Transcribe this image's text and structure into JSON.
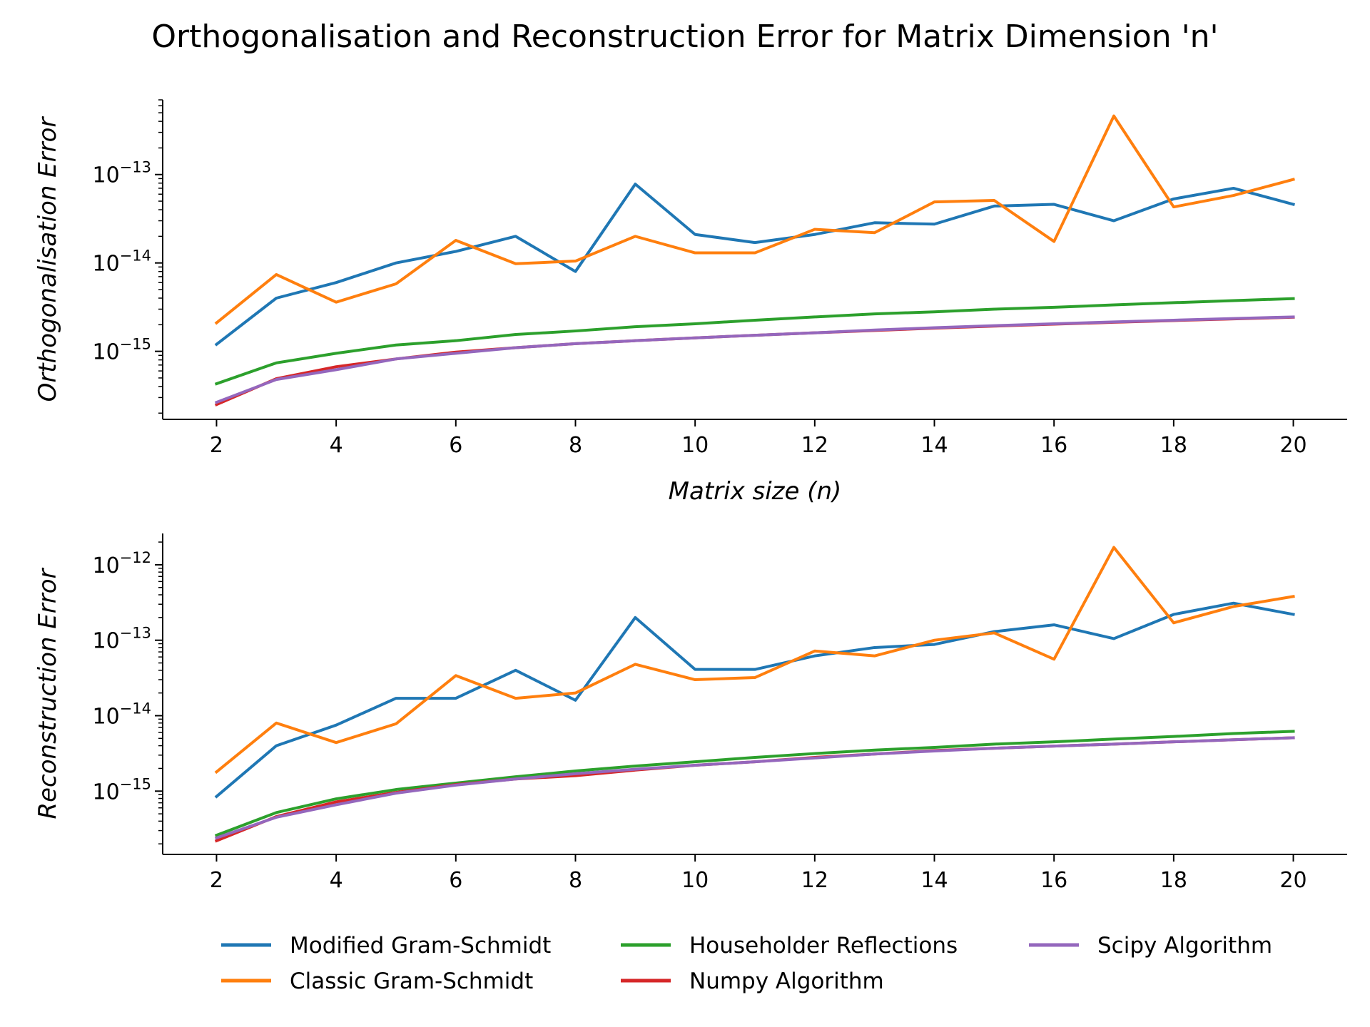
{
  "title": "Orthogonalisation and Reconstruction Error for Matrix Dimension 'n'",
  "chart_data": [
    {
      "type": "line",
      "ylabel": "Orthogonalisation Error",
      "xlabel": "Matrix size (n)",
      "yscale": "log",
      "x": [
        2,
        3,
        4,
        5,
        6,
        7,
        8,
        9,
        10,
        11,
        12,
        13,
        14,
        15,
        16,
        17,
        18,
        19,
        20
      ],
      "xticks": [
        2,
        4,
        6,
        8,
        10,
        12,
        14,
        16,
        18,
        20
      ],
      "xtick_labels": [
        "2",
        "4",
        "6",
        "8",
        "10",
        "12",
        "14",
        "16",
        "18",
        "20"
      ],
      "yticks": [
        {
          "value": 1e-15,
          "base": "10",
          "exp": "−15"
        },
        {
          "value": 1e-14,
          "base": "10",
          "exp": "−14"
        },
        {
          "value": 1e-13,
          "base": "10",
          "exp": "−13"
        }
      ],
      "ylim": [
        1.7e-16,
        7e-13
      ],
      "xlim": [
        1.1,
        20.9
      ],
      "series": [
        {
          "name": "Modified Gram-Schmidt",
          "color": "#1f77b4",
          "values": [
            1.2e-15,
            4e-15,
            6e-15,
            1e-14,
            1.35e-14,
            2e-14,
            8e-15,
            7.8e-14,
            2.1e-14,
            1.7e-14,
            2.1e-14,
            2.85e-14,
            2.75e-14,
            4.4e-14,
            4.6e-14,
            3e-14,
            5.3e-14,
            7e-14,
            4.6e-14
          ]
        },
        {
          "name": "Classic Gram-Schmidt",
          "color": "#ff7f0e",
          "values": [
            2.1e-15,
            7.4e-15,
            3.6e-15,
            5.8e-15,
            1.8e-14,
            9.8e-15,
            1.05e-14,
            2e-14,
            1.3e-14,
            1.3e-14,
            2.4e-14,
            2.2e-14,
            4.9e-14,
            5.1e-14,
            1.75e-14,
            4.6e-13,
            4.3e-14,
            5.8e-14,
            8.8e-14
          ]
        },
        {
          "name": "Householder Reflections",
          "color": "#2ca02c",
          "values": [
            4.3e-16,
            7.4e-16,
            9.5e-16,
            1.18e-15,
            1.32e-15,
            1.55e-15,
            1.7e-15,
            1.9e-15,
            2.05e-15,
            2.25e-15,
            2.45e-15,
            2.65e-15,
            2.8e-15,
            3e-15,
            3.15e-15,
            3.35e-15,
            3.55e-15,
            3.75e-15,
            3.95e-15
          ]
        },
        {
          "name": "Numpy Algorithm",
          "color": "#d62728",
          "values": [
            2.5e-16,
            4.9e-16,
            6.7e-16,
            8.2e-16,
            9.8e-16,
            1.1e-15,
            1.22e-15,
            1.32e-15,
            1.42e-15,
            1.52e-15,
            1.62e-15,
            1.72e-15,
            1.83e-15,
            1.93e-15,
            2.03e-15,
            2.13e-15,
            2.23e-15,
            2.33e-15,
            2.43e-15
          ]
        },
        {
          "name": "Scipy Algorithm",
          "color": "#9467bd",
          "values": [
            2.65e-16,
            4.8e-16,
            6.2e-16,
            8.2e-16,
            9.5e-16,
            1.1e-15,
            1.22e-15,
            1.32e-15,
            1.42e-15,
            1.52e-15,
            1.62e-15,
            1.74e-15,
            1.85e-15,
            1.95e-15,
            2.05e-15,
            2.15e-15,
            2.25e-15,
            2.35e-15,
            2.45e-15
          ]
        }
      ]
    },
    {
      "type": "line",
      "ylabel": "Reconstruction Error",
      "xlabel": "",
      "yscale": "log",
      "x": [
        2,
        3,
        4,
        5,
        6,
        7,
        8,
        9,
        10,
        11,
        12,
        13,
        14,
        15,
        16,
        17,
        18,
        19,
        20
      ],
      "xticks": [
        2,
        4,
        6,
        8,
        10,
        12,
        14,
        16,
        18,
        20
      ],
      "xtick_labels": [
        "2",
        "4",
        "6",
        "8",
        "10",
        "12",
        "14",
        "16",
        "18",
        "20"
      ],
      "yticks": [
        {
          "value": 1e-15,
          "base": "10",
          "exp": "−15"
        },
        {
          "value": 1e-14,
          "base": "10",
          "exp": "−14"
        },
        {
          "value": 1e-13,
          "base": "10",
          "exp": "−13"
        },
        {
          "value": 1e-12,
          "base": "10",
          "exp": "−12"
        }
      ],
      "ylim": [
        1.45e-16,
        2.6e-12
      ],
      "xlim": [
        1.1,
        20.9
      ],
      "series": [
        {
          "name": "Modified Gram-Schmidt",
          "color": "#1f77b4",
          "values": [
            8.5e-16,
            4e-15,
            7.5e-15,
            1.7e-14,
            1.7e-14,
            4e-14,
            1.6e-14,
            2e-13,
            4.1e-14,
            4.1e-14,
            6.2e-14,
            8e-14,
            8.8e-14,
            1.3e-13,
            1.6e-13,
            1.05e-13,
            2.2e-13,
            3.1e-13,
            2.2e-13
          ]
        },
        {
          "name": "Classic Gram-Schmidt",
          "color": "#ff7f0e",
          "values": [
            1.8e-15,
            8e-15,
            4.4e-15,
            7.8e-15,
            3.4e-14,
            1.7e-14,
            2e-14,
            4.8e-14,
            3e-14,
            3.2e-14,
            7.2e-14,
            6.2e-14,
            1e-13,
            1.25e-13,
            5.6e-14,
            1.7e-12,
            1.7e-13,
            2.8e-13,
            3.8e-13
          ]
        },
        {
          "name": "Householder Reflections",
          "color": "#2ca02c",
          "values": [
            2.6e-16,
            5.2e-16,
            7.9e-16,
            1.05e-15,
            1.28e-15,
            1.55e-15,
            1.85e-15,
            2.15e-15,
            2.45e-15,
            2.8e-15,
            3.15e-15,
            3.5e-15,
            3.8e-15,
            4.2e-15,
            4.5e-15,
            4.9e-15,
            5.3e-15,
            5.8e-15,
            6.2e-15
          ]
        },
        {
          "name": "Numpy Algorithm",
          "color": "#d62728",
          "values": [
            2.2e-16,
            4.6e-16,
            7.2e-16,
            9.6e-16,
            1.22e-15,
            1.45e-15,
            1.6e-15,
            1.9e-15,
            2.2e-15,
            2.45e-15,
            2.8e-15,
            3.1e-15,
            3.45e-15,
            3.7e-15,
            3.95e-15,
            4.2e-15,
            4.5e-15,
            4.8e-15,
            5.1e-15
          ]
        },
        {
          "name": "Scipy Algorithm",
          "color": "#9467bd",
          "values": [
            2.4e-16,
            4.5e-16,
            6.6e-16,
            9.4e-16,
            1.2e-15,
            1.45e-15,
            1.7e-15,
            1.95e-15,
            2.2e-15,
            2.45e-15,
            2.75e-15,
            3.1e-15,
            3.4e-15,
            3.7e-15,
            3.95e-15,
            4.2e-15,
            4.5e-15,
            4.8e-15,
            5.1e-15
          ]
        }
      ]
    }
  ],
  "legend": {
    "placement": "bottom-center",
    "columns": 3,
    "items": [
      "Modified Gram-Schmidt",
      "Classic Gram-Schmidt",
      "Householder Reflections",
      "Numpy Algorithm",
      "Scipy Algorithm"
    ]
  }
}
